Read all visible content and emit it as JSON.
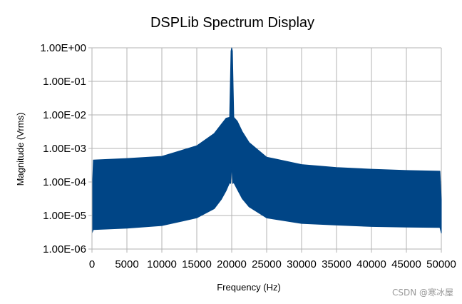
{
  "chart_data": {
    "type": "area",
    "title": "DSPLib Spectrum Display",
    "xlabel": "Frequency (Hz)",
    "ylabel": "Magnitude (Vrms)",
    "yscale": "log",
    "xlim": [
      0,
      50000
    ],
    "ylim": [
      1e-06,
      1
    ],
    "x_ticks": [
      0,
      5000,
      10000,
      15000,
      20000,
      25000,
      30000,
      35000,
      40000,
      45000,
      50000
    ],
    "x_tick_labels": [
      "0",
      "5000",
      "10000",
      "15000",
      "20000",
      "25000",
      "30000",
      "35000",
      "40000",
      "45000",
      "50000"
    ],
    "y_ticks": [
      1,
      0.1,
      0.01,
      0.001,
      0.0001,
      1e-05,
      1e-06
    ],
    "y_tick_labels": [
      "1.00E+00",
      "1.00E-01",
      "1.00E-02",
      "1.00E-03",
      "1.00E-04",
      "1.00E-05",
      "1.00E-06"
    ],
    "grid": true,
    "legend": "none",
    "series": [
      {
        "color": "#004586",
        "upper_envelope": {
          "x": [
            0,
            200,
            5000,
            10000,
            15000,
            17500,
            18500,
            19200,
            19700,
            19900,
            20000,
            20100,
            20300,
            20800,
            21500,
            22500,
            25000,
            30000,
            35000,
            40000,
            45000,
            49800,
            50000
          ],
          "y": [
            3e-05,
            0.00045,
            0.0005,
            0.00058,
            0.0012,
            0.0028,
            0.0052,
            0.008,
            0.0085,
            0.8,
            1,
            0.8,
            0.0085,
            0.0065,
            0.0032,
            0.0015,
            0.00055,
            0.00033,
            0.00027,
            0.00024,
            0.00022,
            0.00021,
            3e-05
          ]
        },
        "lower_envelope": {
          "x": [
            0,
            200,
            5000,
            10000,
            15000,
            17500,
            18500,
            19200,
            19700,
            19850,
            20000,
            20150,
            20300,
            20800,
            21500,
            22500,
            25000,
            30000,
            35000,
            40000,
            45000,
            49800,
            50000
          ],
          "y": [
            3e-06,
            3.8e-06,
            4.2e-06,
            5e-06,
            8.5e-06,
            1.6e-05,
            3e-05,
            5.5e-05,
            9.5e-05,
            9e-05,
            0.0003,
            9e-05,
            9.5e-05,
            6e-05,
            3.2e-05,
            1.8e-05,
            8.5e-06,
            5.8e-06,
            5.2e-06,
            4.7e-06,
            4.5e-06,
            4.4e-06,
            3e-06
          ]
        }
      }
    ]
  },
  "watermark": "CSDN @寒冰屋"
}
